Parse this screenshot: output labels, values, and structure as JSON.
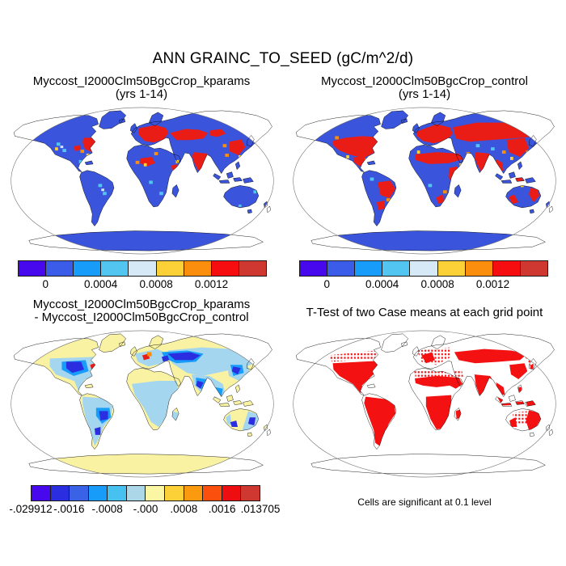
{
  "figure_title": "ANN GRAINC_TO_SEED (gC/m^2/d)",
  "panels": {
    "top_left": {
      "title_line1": "Myccost_I2000Clm50BgcCrop_kparams",
      "title_line2": "(yrs 1-14)"
    },
    "top_right": {
      "title_line1": "Myccost_I2000Clm50BgcCrop_control",
      "title_line2": "(yrs 1-14)"
    },
    "bottom_left": {
      "title_line1": "Myccost_I2000Clm50BgcCrop_kparams",
      "title_line2": "- Myccost_I2000Clm50BgcCrop_control"
    },
    "bottom_right": {
      "title": "T-Test of two Case means at each grid point",
      "caption": "Cells are significant at 0.1 level"
    }
  },
  "colorbars": {
    "top_left": {
      "colors": [
        "#4708ee",
        "#3a5ce8",
        "#189cfa",
        "#52c6f0",
        "#d5e9f6",
        "#fcd137",
        "#fb8f0d",
        "#f50d10",
        "#cf3830"
      ],
      "labels": [
        "0",
        "0.0004",
        "0.0008",
        "0.0012"
      ],
      "positions": [
        0.1111,
        0.3333,
        0.5556,
        0.7778
      ]
    },
    "top_right": {
      "colors": [
        "#4708ee",
        "#3a5ce8",
        "#189cfa",
        "#52c6f0",
        "#d5e9f6",
        "#fcd137",
        "#fb8f0d",
        "#f50d10",
        "#cf3830"
      ],
      "labels": [
        "0",
        "0.0004",
        "0.0008",
        "0.0012"
      ],
      "positions": [
        0.1111,
        0.3333,
        0.5556,
        0.7778
      ]
    },
    "bottom_left": {
      "colors": [
        "#4708ee",
        "#2b2de0",
        "#3a62e6",
        "#189cfa",
        "#47c2f0",
        "#abd7e8",
        "#faf6a3",
        "#fcd137",
        "#fb9a0f",
        "#fb4f0d",
        "#ee0d10",
        "#cf3830"
      ],
      "labels": [
        "-.029912",
        "-.0016",
        "-.0008",
        "-.000",
        ".0008",
        ".0016",
        ".013705"
      ],
      "positions": [
        0,
        0.1667,
        0.3333,
        0.5,
        0.6667,
        0.8333,
        1
      ]
    }
  },
  "colors": {
    "ocean": "#ffffff",
    "coastline": "#000000",
    "globe_outline": "#6b6b6b",
    "land_low_blue": "#3a55dc",
    "hot_red": "#ea1c16",
    "hot_orange": "#fb8f0d",
    "hot_gold": "#fcd137",
    "cool_sky": "#52c6f0",
    "cool_pale": "#d5e9f6",
    "diff_base_yellow": "#f8f2a2",
    "diff_light_blue": "#a5d6f0",
    "diff_mid_blue": "#189cfa",
    "diff_deep_blue": "#2b2de0",
    "diff_hot_red": "#ea1c16",
    "sig_red": "#f31112"
  },
  "chart_data": [
    {
      "type": "heatmap",
      "subtype": "global-map",
      "projection": "robinson",
      "title": "Myccost_I2000Clm50BgcCrop_kparams (yrs 1-14)",
      "variable": "ANN GRAINC_TO_SEED",
      "units": "gC/m^2/d",
      "labeled_ticks": [
        0,
        0.0004,
        0.0008,
        0.0012
      ],
      "level_boundaries": [
        0,
        0.0002,
        0.0004,
        0.0006,
        0.0008,
        0.001,
        0.0012,
        0.0014
      ],
      "palette": [
        "#4708ee",
        "#3a5ce8",
        "#189cfa",
        "#52c6f0",
        "#d5e9f6",
        "#fcd137",
        "#fb8f0d",
        "#f50d10",
        "#cf3830"
      ],
      "high_value_regions": [
        "eastern US",
        "Europe",
        "Turkey-Central Asia",
        "India",
        "eastern China",
        "Sahel/Nigeria"
      ]
    },
    {
      "type": "heatmap",
      "subtype": "global-map",
      "projection": "robinson",
      "title": "Myccost_I2000Clm50BgcCrop_control (yrs 1-14)",
      "variable": "ANN GRAINC_TO_SEED",
      "units": "gC/m^2/d",
      "labeled_ticks": [
        0,
        0.0004,
        0.0008,
        0.0012
      ],
      "level_boundaries": [
        0,
        0.0002,
        0.0004,
        0.0006,
        0.0008,
        0.001,
        0.0012,
        0.0014
      ],
      "palette": [
        "#4708ee",
        "#3a5ce8",
        "#189cfa",
        "#52c6f0",
        "#d5e9f6",
        "#fcd137",
        "#fb8f0d",
        "#f50d10",
        "#cf3830"
      ],
      "high_value_regions": [
        "most of US",
        "Mexico",
        "Europe",
        "southern Russia band",
        "India",
        "China",
        "SE Asia",
        "Sahel",
        "East Africa",
        "Brazil",
        "southern Australia"
      ]
    },
    {
      "type": "heatmap",
      "subtype": "global-map-difference",
      "projection": "robinson",
      "title": "Myccost_I2000Clm50BgcCrop_kparams - Myccost_I2000Clm50BgcCrop_control",
      "min": -0.029912,
      "max": 0.013705,
      "labeled_ticks": [
        -0.029912,
        -0.0016,
        -0.0008,
        0,
        0.0008,
        0.0016,
        0.013705
      ],
      "level_boundaries": [
        -0.002,
        -0.0016,
        -0.0012,
        -0.0008,
        -0.0004,
        0,
        0.0004,
        0.0008,
        0.0012,
        0.0016,
        0.002
      ],
      "palette": [
        "#4708ee",
        "#2b2de0",
        "#3a62e6",
        "#189cfa",
        "#47c2f0",
        "#abd7e8",
        "#faf6a3",
        "#fcd137",
        "#fb9a0f",
        "#fb4f0d",
        "#ee0d10",
        "#cf3830"
      ],
      "negative_regions": [
        "US Midwest",
        "eastern Europe/Russia",
        "India",
        "China",
        "Brazil",
        "southern Australia"
      ],
      "positive_regions": [
        "US east coast",
        "France/Germany"
      ]
    },
    {
      "type": "heatmap",
      "subtype": "significance-mask",
      "projection": "robinson",
      "title": "T-Test of two Case means at each grid point",
      "note": "Cells are significant at 0.1 level",
      "significant_color": "#f31112",
      "significant_regions": [
        "most of US",
        "South America",
        "Africa south of Sahara",
        "India",
        "SE Asia",
        "southern Russia band",
        "eastern Australia"
      ]
    }
  ]
}
